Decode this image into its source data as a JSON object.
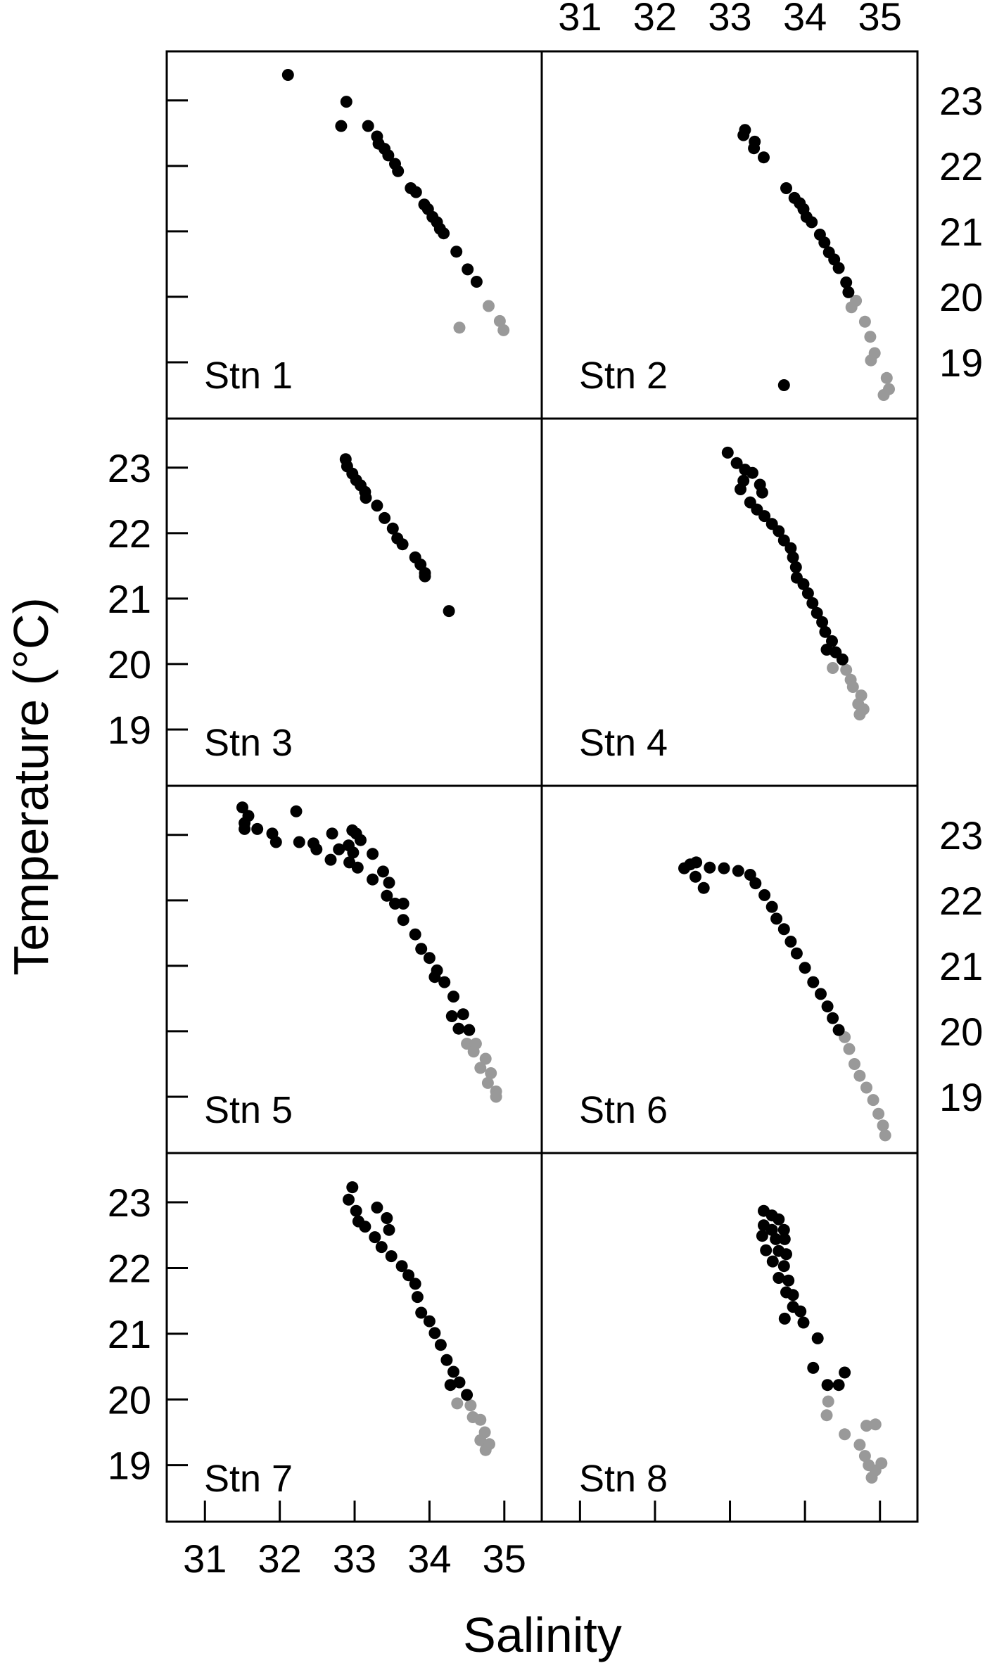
{
  "chart_data": {
    "type": "scatter",
    "title": "",
    "xlabel": "Salinity",
    "ylabel": "Temperature (°C)",
    "xlim": [
      30.49,
      35.5
    ],
    "ylim": [
      18.14,
      23.75
    ],
    "x_ticks": [
      31,
      32,
      33,
      34,
      35
    ],
    "y_ticks": [
      19,
      20,
      21,
      22,
      23
    ],
    "grid": false,
    "legend": null,
    "layout": {
      "rows": 4,
      "cols": 2
    },
    "series_colors": {
      "upper": "#000000",
      "lower": "#999999"
    },
    "panels": [
      {
        "label": "Stn 1",
        "upper": [
          [
            32.11,
            23.39
          ],
          [
            32.89,
            22.98
          ],
          [
            32.82,
            22.61
          ],
          [
            33.18,
            22.61
          ],
          [
            33.3,
            22.45
          ],
          [
            33.32,
            22.34
          ],
          [
            33.4,
            22.26
          ],
          [
            33.45,
            22.16
          ],
          [
            33.54,
            22.03
          ],
          [
            33.58,
            21.92
          ],
          [
            33.75,
            21.66
          ],
          [
            33.82,
            21.6
          ],
          [
            33.93,
            21.41
          ],
          [
            33.98,
            21.34
          ],
          [
            34.04,
            21.22
          ],
          [
            34.1,
            21.14
          ],
          [
            34.14,
            21.04
          ],
          [
            34.19,
            20.97
          ],
          [
            34.36,
            20.69
          ],
          [
            34.51,
            20.42
          ],
          [
            34.63,
            20.23
          ]
        ],
        "lower": [
          [
            34.79,
            19.86
          ],
          [
            34.4,
            19.53
          ],
          [
            34.94,
            19.63
          ],
          [
            34.99,
            19.49
          ]
        ]
      },
      {
        "label": "Stn 2",
        "upper": [
          [
            33.2,
            22.55
          ],
          [
            33.18,
            22.47
          ],
          [
            33.33,
            22.37
          ],
          [
            33.32,
            22.27
          ],
          [
            33.45,
            22.13
          ],
          [
            33.75,
            21.66
          ],
          [
            33.86,
            21.51
          ],
          [
            33.93,
            21.43
          ],
          [
            33.98,
            21.34
          ],
          [
            34.02,
            21.22
          ],
          [
            34.09,
            21.14
          ],
          [
            34.2,
            20.95
          ],
          [
            34.26,
            20.83
          ],
          [
            34.32,
            20.68
          ],
          [
            34.39,
            20.57
          ],
          [
            34.45,
            20.44
          ],
          [
            34.55,
            20.22
          ],
          [
            34.58,
            20.07
          ],
          [
            33.72,
            18.65
          ]
        ],
        "lower": [
          [
            34.68,
            19.94
          ],
          [
            34.62,
            19.84
          ],
          [
            34.8,
            19.62
          ],
          [
            34.87,
            19.39
          ],
          [
            34.93,
            19.14
          ],
          [
            34.88,
            19.03
          ],
          [
            35.09,
            18.76
          ],
          [
            35.12,
            18.59
          ],
          [
            35.05,
            18.5
          ]
        ]
      },
      {
        "label": "Stn 3",
        "upper": [
          [
            32.88,
            23.13
          ],
          [
            32.9,
            23.02
          ],
          [
            32.97,
            22.91
          ],
          [
            33.02,
            22.81
          ],
          [
            33.08,
            22.73
          ],
          [
            33.14,
            22.63
          ],
          [
            33.15,
            22.54
          ],
          [
            33.3,
            22.42
          ],
          [
            33.4,
            22.23
          ],
          [
            33.51,
            22.07
          ],
          [
            33.57,
            21.92
          ],
          [
            33.64,
            21.83
          ],
          [
            33.81,
            21.63
          ],
          [
            33.88,
            21.52
          ],
          [
            33.94,
            21.39
          ],
          [
            33.94,
            21.34
          ],
          [
            34.26,
            20.81
          ]
        ],
        "lower": []
      },
      {
        "label": "Stn 4",
        "upper": [
          [
            32.97,
            23.23
          ],
          [
            33.09,
            23.07
          ],
          [
            33.2,
            22.97
          ],
          [
            33.3,
            22.92
          ],
          [
            33.18,
            22.8
          ],
          [
            33.4,
            22.74
          ],
          [
            33.43,
            22.62
          ],
          [
            33.14,
            22.67
          ],
          [
            33.27,
            22.47
          ],
          [
            33.36,
            22.36
          ],
          [
            33.46,
            22.26
          ],
          [
            33.56,
            22.14
          ],
          [
            33.65,
            22.03
          ],
          [
            33.72,
            21.89
          ],
          [
            33.81,
            21.77
          ],
          [
            33.84,
            21.63
          ],
          [
            33.88,
            21.48
          ],
          [
            33.89,
            21.32
          ],
          [
            33.98,
            21.22
          ],
          [
            34.04,
            21.08
          ],
          [
            34.1,
            20.93
          ],
          [
            34.16,
            20.78
          ],
          [
            34.23,
            20.64
          ],
          [
            34.27,
            20.49
          ],
          [
            34.36,
            20.35
          ],
          [
            34.29,
            20.22
          ],
          [
            34.41,
            20.18
          ],
          [
            34.5,
            20.07
          ]
        ],
        "lower": [
          [
            34.37,
            19.94
          ],
          [
            34.55,
            19.91
          ],
          [
            34.61,
            19.76
          ],
          [
            34.64,
            19.65
          ],
          [
            34.75,
            19.52
          ],
          [
            34.71,
            19.39
          ],
          [
            34.78,
            19.31
          ],
          [
            34.73,
            19.23
          ]
        ]
      },
      {
        "label": "Stn 5",
        "upper": [
          [
            31.5,
            23.42
          ],
          [
            31.58,
            23.29
          ],
          [
            31.53,
            23.18
          ],
          [
            31.53,
            23.09
          ],
          [
            31.7,
            23.09
          ],
          [
            31.9,
            23.02
          ],
          [
            31.95,
            22.89
          ],
          [
            32.22,
            23.36
          ],
          [
            32.26,
            22.89
          ],
          [
            32.45,
            22.87
          ],
          [
            32.49,
            22.78
          ],
          [
            32.7,
            23.02
          ],
          [
            32.68,
            22.62
          ],
          [
            32.79,
            22.78
          ],
          [
            32.97,
            23.07
          ],
          [
            33.02,
            23.02
          ],
          [
            33.08,
            22.92
          ],
          [
            32.92,
            22.84
          ],
          [
            32.98,
            22.73
          ],
          [
            32.93,
            22.58
          ],
          [
            33.04,
            22.5
          ],
          [
            33.24,
            22.71
          ],
          [
            33.24,
            22.32
          ],
          [
            33.38,
            22.44
          ],
          [
            33.46,
            22.27
          ],
          [
            33.43,
            22.07
          ],
          [
            33.54,
            21.95
          ],
          [
            33.65,
            21.95
          ],
          [
            33.65,
            21.7
          ],
          [
            33.81,
            21.48
          ],
          [
            33.89,
            21.26
          ],
          [
            34.0,
            21.12
          ],
          [
            34.1,
            20.93
          ],
          [
            34.07,
            20.83
          ],
          [
            34.2,
            20.75
          ],
          [
            34.32,
            20.53
          ],
          [
            34.3,
            20.23
          ],
          [
            34.45,
            20.26
          ],
          [
            34.39,
            20.04
          ],
          [
            34.53,
            20.02
          ]
        ],
        "lower": [
          [
            34.5,
            19.81
          ],
          [
            34.62,
            19.81
          ],
          [
            34.59,
            19.69
          ],
          [
            34.75,
            19.58
          ],
          [
            34.68,
            19.44
          ],
          [
            34.82,
            19.36
          ],
          [
            34.78,
            19.21
          ],
          [
            34.89,
            19.08
          ],
          [
            34.89,
            19.0
          ]
        ]
      },
      {
        "label": "Stn 6",
        "upper": [
          [
            32.39,
            22.49
          ],
          [
            32.47,
            22.55
          ],
          [
            32.55,
            22.58
          ],
          [
            32.54,
            22.36
          ],
          [
            32.65,
            22.19
          ],
          [
            32.73,
            22.5
          ],
          [
            32.92,
            22.49
          ],
          [
            33.11,
            22.45
          ],
          [
            33.27,
            22.39
          ],
          [
            33.34,
            22.26
          ],
          [
            33.46,
            22.08
          ],
          [
            33.56,
            21.9
          ],
          [
            33.62,
            21.72
          ],
          [
            33.72,
            21.56
          ],
          [
            33.81,
            21.37
          ],
          [
            33.89,
            21.19
          ],
          [
            34.0,
            20.97
          ],
          [
            34.11,
            20.75
          ],
          [
            34.21,
            20.57
          ],
          [
            34.3,
            20.38
          ],
          [
            34.37,
            20.2
          ],
          [
            34.45,
            20.02
          ]
        ],
        "lower": [
          [
            34.53,
            19.91
          ],
          [
            34.59,
            19.73
          ],
          [
            34.66,
            19.5
          ],
          [
            34.73,
            19.32
          ],
          [
            34.82,
            19.14
          ],
          [
            34.91,
            18.95
          ],
          [
            34.98,
            18.74
          ],
          [
            35.04,
            18.56
          ],
          [
            35.07,
            18.41
          ]
        ]
      },
      {
        "label": "Stn 7",
        "upper": [
          [
            32.97,
            23.23
          ],
          [
            32.92,
            23.04
          ],
          [
            33.02,
            22.87
          ],
          [
            33.05,
            22.71
          ],
          [
            33.14,
            22.63
          ],
          [
            33.3,
            22.92
          ],
          [
            33.43,
            22.76
          ],
          [
            33.46,
            22.58
          ],
          [
            33.27,
            22.47
          ],
          [
            33.36,
            22.32
          ],
          [
            33.49,
            22.18
          ],
          [
            33.63,
            22.03
          ],
          [
            33.72,
            21.89
          ],
          [
            33.81,
            21.76
          ],
          [
            33.84,
            21.56
          ],
          [
            33.89,
            21.32
          ],
          [
            34.0,
            21.19
          ],
          [
            34.07,
            21.01
          ],
          [
            34.15,
            20.83
          ],
          [
            34.23,
            20.6
          ],
          [
            34.32,
            20.42
          ],
          [
            34.28,
            20.22
          ],
          [
            34.4,
            20.26
          ],
          [
            34.5,
            20.07
          ]
        ],
        "lower": [
          [
            34.37,
            19.94
          ],
          [
            34.55,
            19.91
          ],
          [
            34.58,
            19.73
          ],
          [
            34.68,
            19.69
          ],
          [
            34.74,
            19.5
          ],
          [
            34.68,
            19.38
          ],
          [
            34.8,
            19.32
          ],
          [
            34.75,
            19.23
          ]
        ]
      },
      {
        "label": "Stn 8",
        "upper": [
          [
            33.45,
            22.87
          ],
          [
            33.56,
            22.8
          ],
          [
            33.65,
            22.74
          ],
          [
            33.45,
            22.65
          ],
          [
            33.56,
            22.58
          ],
          [
            33.72,
            22.58
          ],
          [
            33.43,
            22.49
          ],
          [
            33.61,
            22.44
          ],
          [
            33.73,
            22.44
          ],
          [
            33.48,
            22.27
          ],
          [
            33.65,
            22.26
          ],
          [
            33.75,
            22.21
          ],
          [
            33.57,
            22.1
          ],
          [
            33.72,
            22.03
          ],
          [
            33.65,
            21.85
          ],
          [
            33.78,
            21.81
          ],
          [
            33.75,
            21.63
          ],
          [
            33.84,
            21.59
          ],
          [
            33.84,
            21.41
          ],
          [
            33.94,
            21.34
          ],
          [
            33.98,
            21.17
          ],
          [
            33.73,
            21.23
          ],
          [
            34.17,
            20.93
          ],
          [
            34.11,
            20.48
          ],
          [
            34.3,
            20.22
          ],
          [
            34.45,
            20.22
          ],
          [
            34.53,
            20.41
          ]
        ],
        "lower": [
          [
            34.31,
            19.97
          ],
          [
            34.29,
            19.76
          ],
          [
            34.53,
            19.47
          ],
          [
            34.82,
            19.6
          ],
          [
            34.94,
            19.62
          ],
          [
            34.73,
            19.31
          ],
          [
            34.8,
            19.14
          ],
          [
            34.85,
            19.0
          ],
          [
            34.89,
            18.81
          ],
          [
            35.02,
            19.03
          ],
          [
            34.94,
            18.92
          ]
        ]
      }
    ]
  },
  "axes": {
    "xlabel": "Salinity",
    "ylabel": "Temperature (°C)",
    "top_tick_labels": [
      "31",
      "32",
      "33",
      "34",
      "35"
    ],
    "bottom_tick_labels": [
      "31",
      "32",
      "33",
      "34",
      "35"
    ],
    "left_tick_labels": [
      "23",
      "22",
      "21",
      "20",
      "19"
    ],
    "right_tick_labels": [
      "23",
      "22",
      "21",
      "20",
      "19"
    ]
  }
}
